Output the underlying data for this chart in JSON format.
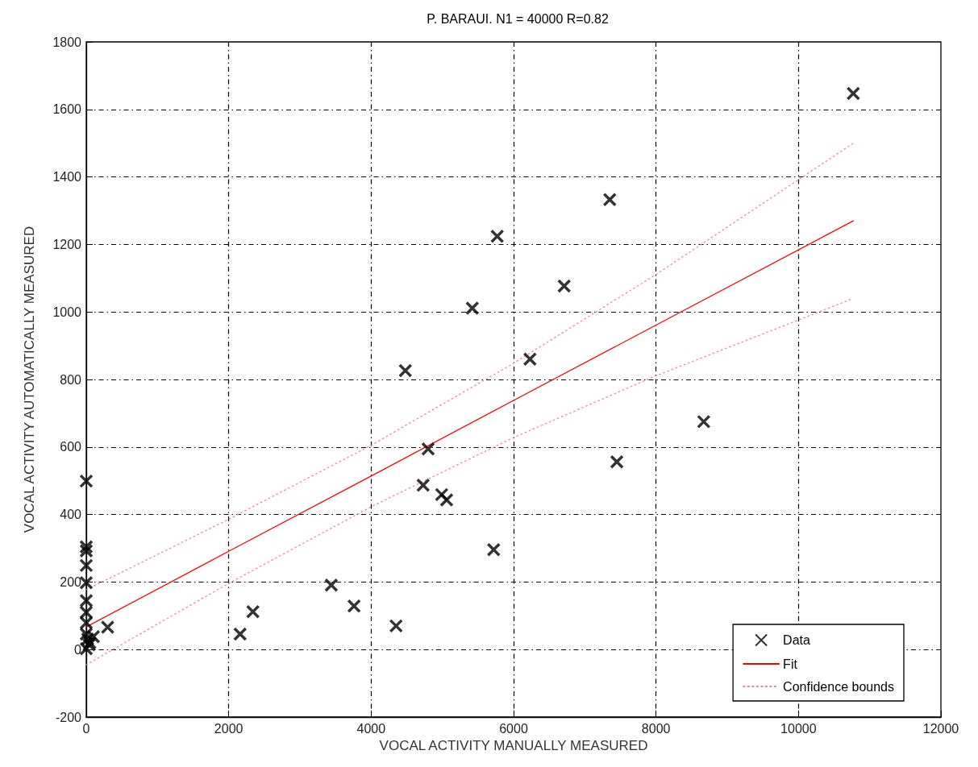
{
  "chart_data": {
    "type": "scatter",
    "title": "P. BARAUI. N1 = 40000 R=0.82",
    "xlabel": "VOCAL ACTIVITY MANUALLY MEASURED",
    "ylabel": "VOCAL ACTIVITY AUTOMATICALLY MEASURED",
    "xlim": [
      0,
      12000
    ],
    "xticks": [
      0,
      2000,
      4000,
      6000,
      8000,
      10000,
      12000
    ],
    "ylim": [
      -200,
      1800
    ],
    "yticks": [
      -200,
      0,
      200,
      400,
      600,
      800,
      1000,
      1200,
      1400,
      1600,
      1800
    ],
    "grid": true,
    "legend": "bottom right",
    "series": [
      {
        "name": "Data",
        "marker": "cross",
        "color": "#000000",
        "x": [
          0,
          0,
          0,
          0,
          0,
          0,
          0,
          0,
          0,
          20,
          40,
          0,
          100,
          50,
          300,
          2160,
          2340,
          3440,
          3760,
          4350,
          4480,
          4730,
          4800,
          4990,
          5060,
          5420,
          5720,
          5770,
          6230,
          6710,
          7350,
          7450,
          8670,
          10770
        ],
        "values": [
          499,
          304,
          292,
          249,
          198,
          145,
          110,
          79,
          46,
          31,
          14,
          2,
          38,
          20,
          66,
          46,
          112,
          191,
          129,
          70,
          826,
          487,
          594,
          459,
          443,
          1011,
          296,
          1224,
          860,
          1077,
          1333,
          556,
          675,
          1647
        ]
      },
      {
        "name": "Fit",
        "type": "line",
        "marker": "none",
        "line_style": "solid",
        "color": "#ff0000",
        "x": [
          0,
          2000,
          4000,
          6000,
          8000,
          10770
        ],
        "values": [
          67,
          291,
          514,
          738,
          961,
          1270
        ]
      },
      {
        "name": "Confidence bounds",
        "type": "line",
        "marker": "none",
        "line_style": "dotted",
        "color": "#ff8080",
        "x": [
          0,
          2000,
          4000,
          6000,
          8000,
          10770
        ],
        "values": [
          177,
          386,
          605,
          848,
          1111,
          1500
        ]
      },
      {
        "type": "line",
        "marker": "none",
        "line_style": "dotted",
        "color": "#ff8080",
        "x": [
          0,
          2000,
          4000,
          6000,
          8000,
          10770
        ],
        "values": [
          -45,
          196,
          423,
          628,
          811,
          1040
        ]
      }
    ]
  }
}
